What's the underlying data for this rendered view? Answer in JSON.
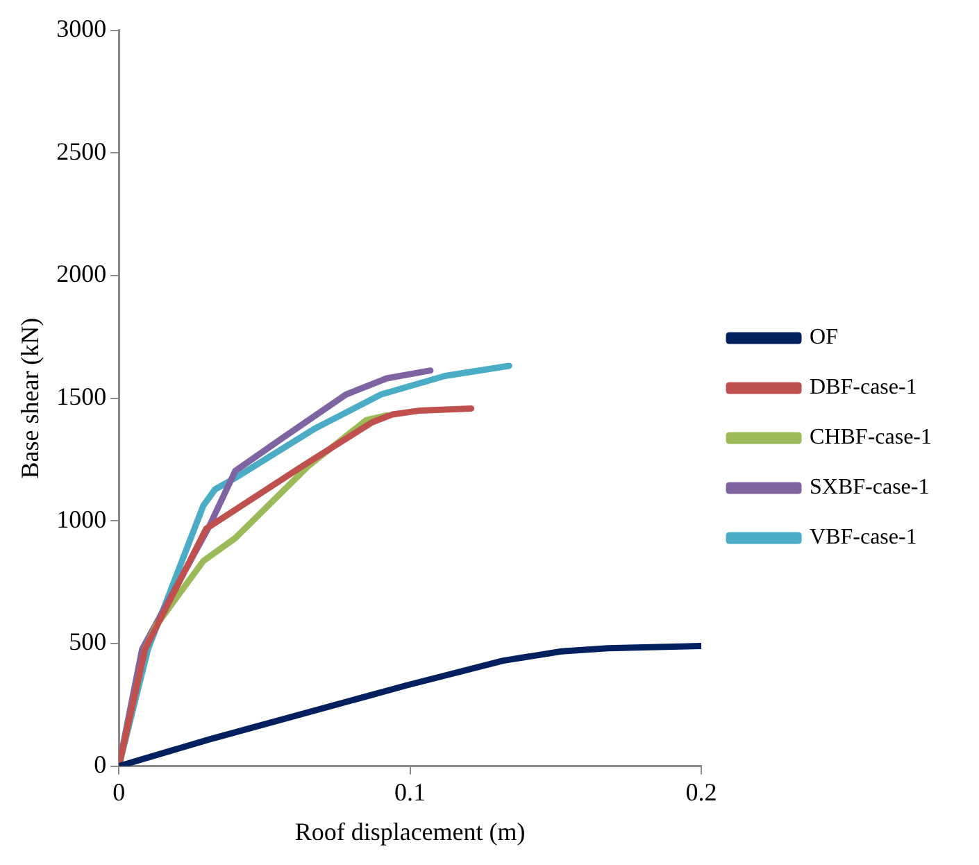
{
  "chart_data": {
    "type": "line",
    "xlabel": "Roof displacement (m)",
    "ylabel": "Base shear (kN)",
    "xlim": [
      0,
      0.2
    ],
    "xticks": [
      0,
      0.1,
      0.2
    ],
    "ylim": [
      0,
      3000
    ],
    "yticks": [
      0,
      500,
      1000,
      1500,
      2000,
      2500,
      3000
    ],
    "grid": false,
    "legend": "right",
    "marker": "none",
    "line_style": "solid",
    "series": [
      {
        "name": "OF",
        "color": "#002060",
        "x": [
          0,
          0.031,
          0.099,
          0.132,
          0.152,
          0.168,
          0.2
        ],
        "values": [
          0,
          109,
          330,
          430,
          468,
          481,
          490
        ]
      },
      {
        "name": "DBF-case-1",
        "color": "#c0504d",
        "x": [
          0,
          0.009,
          0.03,
          0.063,
          0.087,
          0.094,
          0.103,
          0.121
        ],
        "values": [
          0,
          477,
          968,
          1223,
          1402,
          1434,
          1449,
          1458
        ]
      },
      {
        "name": "CHBF-case-1",
        "color": "#9bbb59",
        "x": [
          0,
          0.009,
          0.0127,
          0.029,
          0.04,
          0.065,
          0.085,
          0.092
        ],
        "values": [
          0,
          477,
          572,
          836,
          930,
          1223,
          1411,
          1430
        ]
      },
      {
        "name": "SXBF-case-1",
        "color": "#8064a2",
        "x": [
          0,
          0.008,
          0.031,
          0.04,
          0.056,
          0.078,
          0.092,
          0.107
        ],
        "values": [
          0,
          477,
          977,
          1204,
          1336,
          1515,
          1581,
          1613
        ]
      },
      {
        "name": "VBF-case-1",
        "color": "#4bacc6",
        "x": [
          0,
          0.01,
          0.029,
          0.033,
          0.04,
          0.067,
          0.09,
          0.112,
          0.134
        ],
        "values": [
          0,
          477,
          1062,
          1128,
          1175,
          1374,
          1515,
          1591,
          1632
        ]
      }
    ]
  }
}
